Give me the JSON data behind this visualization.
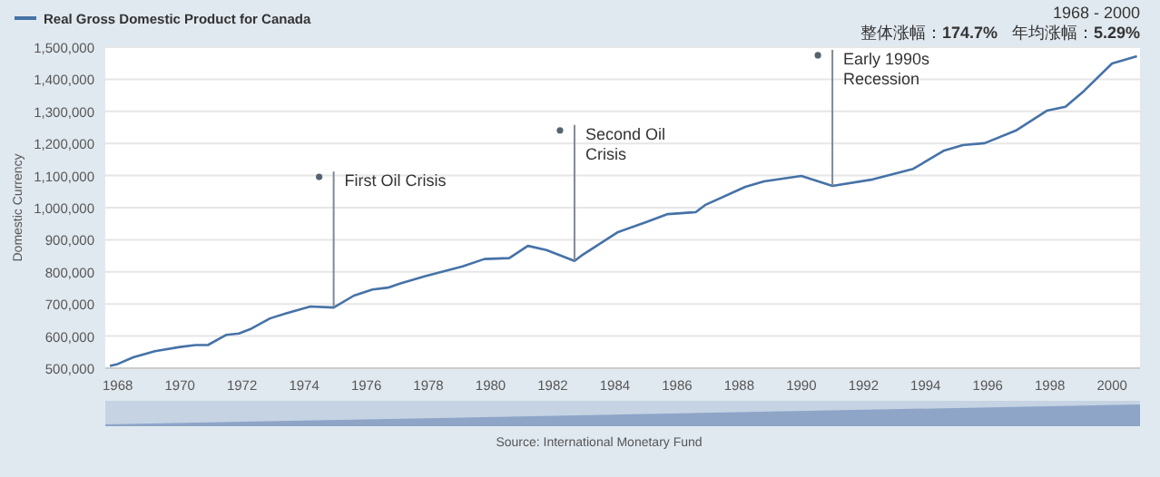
{
  "chart_data": {
    "type": "line",
    "ylabel": "Domestic Currency",
    "x": [
      1967.75,
      1968,
      1968.5,
      1969.2,
      1970,
      1970.5,
      1970.9,
      1971.5,
      1971.9,
      1972.3,
      1972.9,
      1973.4,
      1974.2,
      1974.95,
      1975.6,
      1976.2,
      1976.7,
      1977.1,
      1977.9,
      1979.1,
      1979.8,
      1980.6,
      1981.2,
      1981.8,
      1982.7,
      1982.9,
      1984.1,
      1985,
      1985.7,
      1986.6,
      1986.9,
      1988.2,
      1988.8,
      1990,
      1991,
      1992.3,
      1993.6,
      1994.6,
      1995.2,
      1995.9,
      1996.9,
      1997.9,
      1998.5,
      1999.1,
      2000,
      2000.8
    ],
    "series": [
      {
        "name": "Real Gross Domestic Product for Canada",
        "color": "#4572a7",
        "values": [
          507000,
          513000,
          534000,
          553000,
          566000,
          572000,
          572000,
          604000,
          608000,
          623000,
          655000,
          670000,
          692000,
          689000,
          726000,
          745000,
          751000,
          764000,
          787000,
          817000,
          840000,
          843000,
          881000,
          868000,
          834000,
          849000,
          924000,
          955000,
          980000,
          986000,
          1008000,
          1065000,
          1082000,
          1099000,
          1068000,
          1088000,
          1121000,
          1178000,
          1195000,
          1201000,
          1240000,
          1302000,
          1314000,
          1364000,
          1449000,
          1472000
        ]
      }
    ],
    "xlim": [
      1967.6,
      2000.9
    ],
    "xticks": [
      1968,
      1970,
      1972,
      1974,
      1976,
      1978,
      1980,
      1982,
      1984,
      1986,
      1988,
      1990,
      1992,
      1994,
      1996,
      1998,
      2000
    ],
    "ylim": [
      500000,
      1500000
    ],
    "yticks": [
      {
        "value": 500000,
        "label": "500,000"
      },
      {
        "value": 600000,
        "label": "600,000"
      },
      {
        "value": 700000,
        "label": "700,000"
      },
      {
        "value": 800000,
        "label": "800,000"
      },
      {
        "value": 900000,
        "label": "900,000"
      },
      {
        "value": 1000000,
        "label": "1,000,000"
      },
      {
        "value": 1100000,
        "label": "1,100,000"
      },
      {
        "value": 1200000,
        "label": "1,200,000"
      },
      {
        "value": 1300000,
        "label": "1,300,000"
      },
      {
        "value": 1400000,
        "label": "1,400,000"
      },
      {
        "value": 1500000,
        "label": "1,500,000"
      }
    ],
    "grid": "y",
    "legend": "top left",
    "annotations": [
      {
        "text": "First Oil Crisis",
        "x": 1974.95,
        "y": 689000
      },
      {
        "text": "Second Oil\nCrisis",
        "x": 1982.7,
        "y": 834000
      },
      {
        "text": "Early 1990s\nRecession",
        "x": 1991,
        "y": 1068000
      },
      "1968 - 2000",
      "整体涨幅：174.7%",
      "年均涨幅：5.29%",
      "Source: International Monetary Fund"
    ]
  }
}
